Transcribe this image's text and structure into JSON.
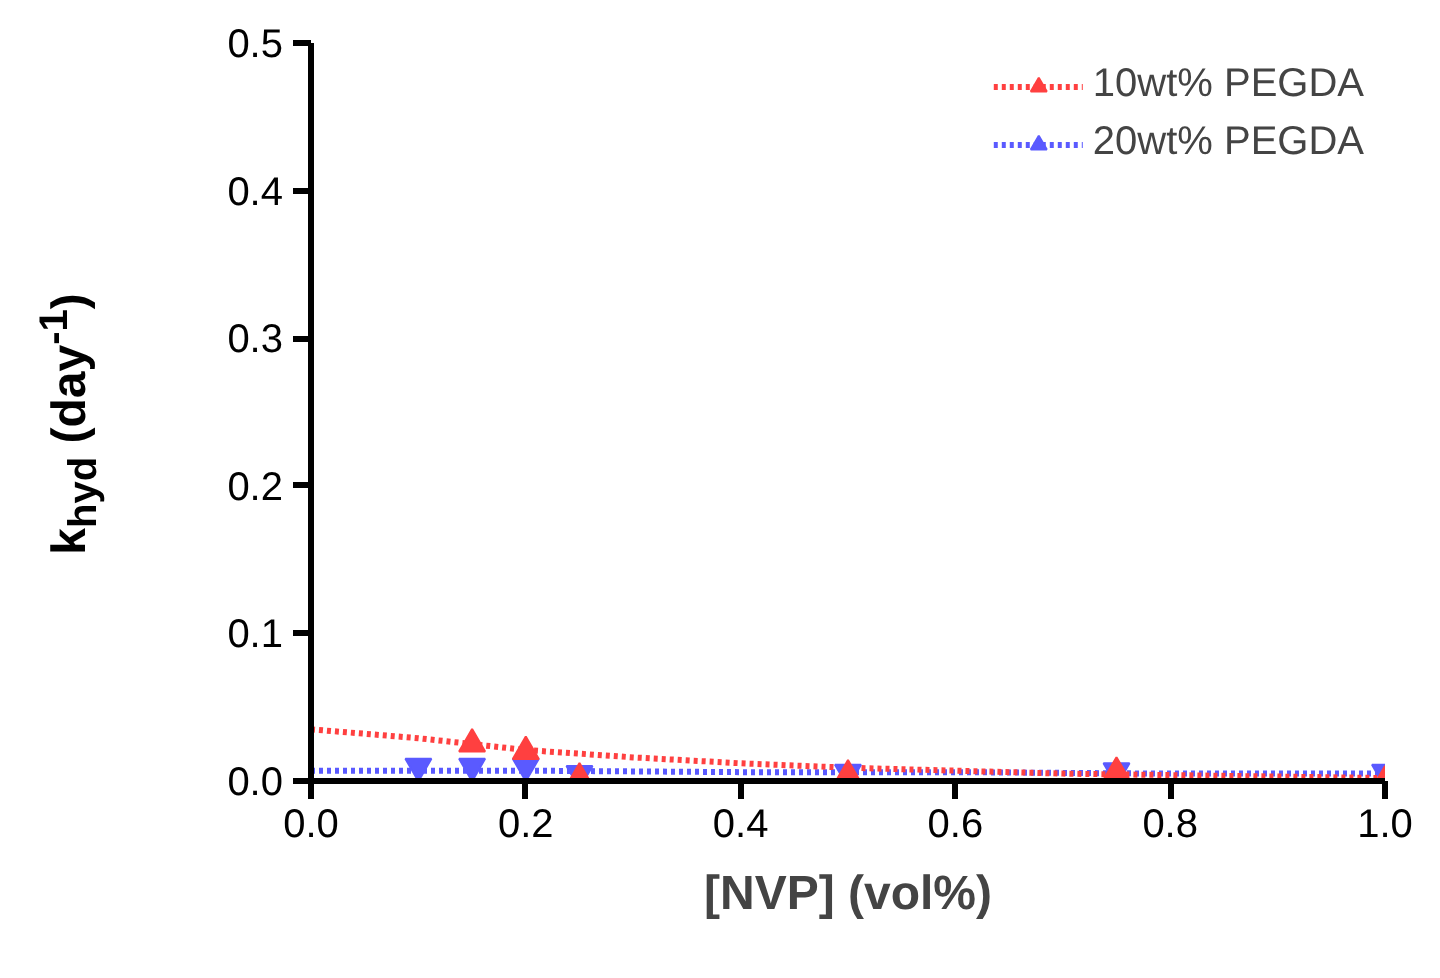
{
  "chart_data": {
    "type": "scatter",
    "xlabel": "[NVP] (vol%)",
    "ylabel": "k$_{hyd}$ (day$^{-1}$)",
    "xlim": [
      0,
      1
    ],
    "ylim": [
      0,
      0.5
    ],
    "xticks": [
      {
        "value": 0,
        "label": "0.0"
      },
      0.2,
      0.4,
      0.6,
      0.8,
      {
        "value": 1,
        "label": "1.0"
      }
    ],
    "yticks": [
      {
        "value": 0,
        "label": "0.0"
      },
      0.1,
      0.2,
      0.3,
      0.4,
      0.5
    ],
    "grid": false,
    "legend": "top right",
    "series": [
      {
        "name": "10wt% PEGDA",
        "color": "#ff4040",
        "marker": "triangle",
        "x": [
          0.15,
          0.2,
          0.25,
          0.5,
          0.75,
          1.0
        ],
        "values": [
          0.025,
          0.02,
          0.002,
          0.004,
          0.006,
          0.0
        ]
      },
      {
        "name": "20wt% PEGDA",
        "color": "#5a5aff",
        "marker": "triangle",
        "x": [
          0.1,
          0.15,
          0.2,
          0.25,
          0.5,
          0.75,
          1.0
        ],
        "values": [
          0.01,
          0.01,
          0.01,
          0.005,
          0.006,
          0.007,
          0.006
        ]
      },
      {
        "type": "line",
        "line_style": "dotted",
        "color": "#ff4040",
        "x": [
          0,
          0.1,
          0.2,
          0.3,
          0.4,
          0.5,
          0.6,
          0.7,
          0.8,
          0.9,
          1.0
        ],
        "values": [
          0.035,
          0.029,
          0.021,
          0.016,
          0.012,
          0.009,
          0.007,
          0.005,
          0.004,
          0.003,
          0.002
        ]
      },
      {
        "type": "line",
        "line_style": "dotted",
        "color": "#5a5aff",
        "x": [
          0,
          0.2,
          0.4,
          0.6,
          0.8,
          1.0
        ],
        "values": [
          0.007,
          0.007,
          0.006,
          0.006,
          0.005,
          0.005
        ]
      }
    ]
  }
}
